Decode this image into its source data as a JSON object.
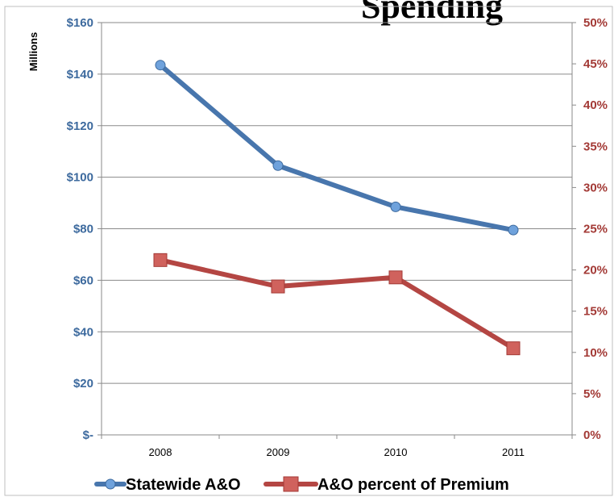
{
  "chart_data": {
    "type": "line",
    "title_visible_fragment": "Spending",
    "left_axis_units": "Millions",
    "categories": [
      "2008",
      "2009",
      "2010",
      "2011"
    ],
    "left_axis": {
      "ylim": [
        0,
        160
      ],
      "ticks": [
        0,
        20,
        40,
        60,
        80,
        100,
        120,
        140,
        160
      ],
      "tick_labels": [
        "$-",
        "$20",
        "$40",
        "$60",
        "$80",
        "$100",
        "$120",
        "$140",
        "$160"
      ],
      "color": "#3d6a9e"
    },
    "right_axis": {
      "ylim": [
        0,
        50
      ],
      "ticks": [
        0,
        5,
        10,
        15,
        20,
        25,
        30,
        35,
        40,
        45,
        50
      ],
      "tick_labels": [
        "0%",
        "5%",
        "10%",
        "15%",
        "20%",
        "25%",
        "30%",
        "35%",
        "40%",
        "45%",
        "50%"
      ],
      "color": "#a33a36"
    },
    "series": [
      {
        "name": "Statewide A&O",
        "axis": "left",
        "values": [
          143.5,
          104.5,
          88.5,
          79.5
        ],
        "color": "#4876ad",
        "marker": "circle",
        "marker_color": "#6fa2dc"
      },
      {
        "name": "A&O percent of Premium",
        "axis": "right",
        "values": [
          21.2,
          18.0,
          19.1,
          10.5
        ],
        "color": "#b44643",
        "marker": "square",
        "marker_color": "#d0625d"
      }
    ],
    "grid": true,
    "legend_placement": "bottom"
  }
}
